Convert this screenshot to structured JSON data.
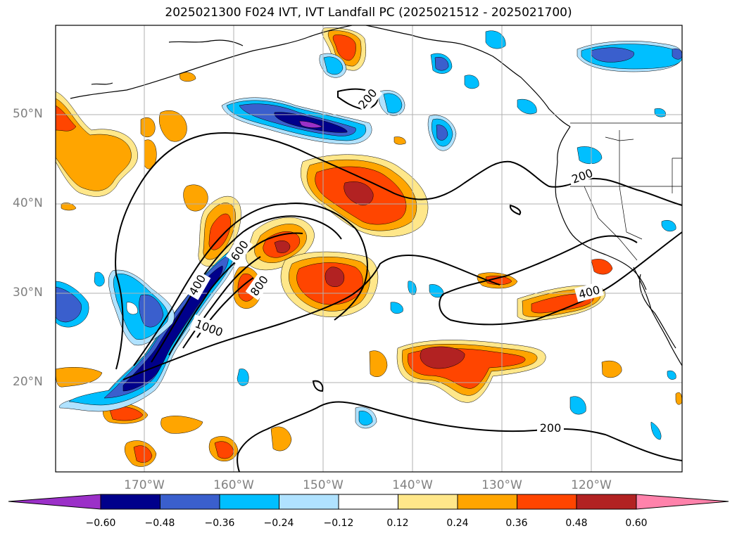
{
  "title": "2025021300 F024 IVT, IVT Landfall PC (2025021512 - 2025021700)",
  "axes": {
    "lat_labels": [
      "50°N",
      "40°N",
      "30°N",
      "20°N"
    ],
    "lon_labels": [
      "170°W",
      "160°W",
      "150°W",
      "140°W",
      "130°W",
      "120°W"
    ]
  },
  "contour_labels": [
    "200",
    "200",
    "200",
    "400",
    "400",
    "600",
    "800",
    "1000"
  ],
  "colorbar": {
    "ticks": [
      "−0.60",
      "−0.48",
      "−0.36",
      "−0.24",
      "−0.12",
      "0.12",
      "0.24",
      "0.36",
      "0.48",
      "0.60"
    ],
    "colors": [
      "#9b30c8",
      "#00008b",
      "#3a5fcd",
      "#00bfff",
      "#b0e2ff",
      "#ffffff",
      "#ffe78a",
      "#ffa500",
      "#ff4500",
      "#b22222",
      "#ff82ab"
    ]
  },
  "palette": {
    "dark_purple": "#9b30c8",
    "navy": "#00008b",
    "blue": "#3a5fcd",
    "sky": "#00bfff",
    "light_sky": "#b0e2ff",
    "pale_yellow": "#ffe78a",
    "orange": "#ffa500",
    "red_orange": "#ff4500",
    "firebrick": "#b22222",
    "pink": "#ff82ab"
  }
}
